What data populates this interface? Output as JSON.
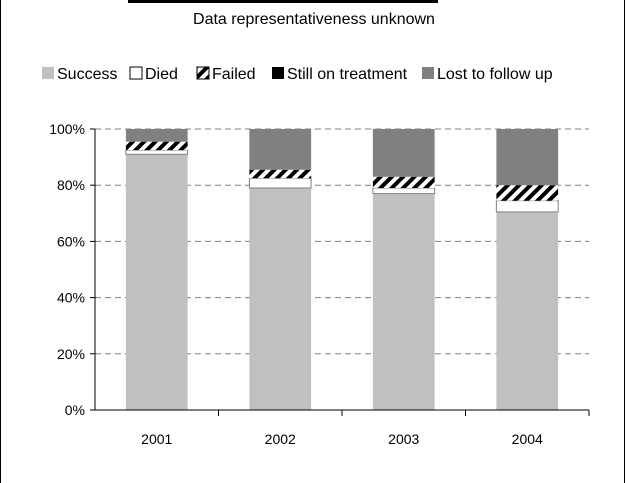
{
  "chart_data": {
    "type": "bar",
    "stacked": true,
    "percent_scale": true,
    "title": "Data representativeness unknown",
    "xlabel": "",
    "ylabel": "",
    "ylim": [
      0,
      100
    ],
    "y_ticks": [
      "0%",
      "20%",
      "40%",
      "60%",
      "80%",
      "100%"
    ],
    "grid": "horizontal dashed",
    "legend_position": "top",
    "categories": [
      "2001",
      "2002",
      "2003",
      "2004"
    ],
    "series": [
      {
        "name": "Success",
        "color": "#c0c0c0",
        "pattern": "solid",
        "values": [
          91,
          79,
          77,
          70.5
        ]
      },
      {
        "name": "Died",
        "color": "#ffffff",
        "pattern": "solid",
        "values": [
          1.5,
          3.5,
          2,
          4
        ]
      },
      {
        "name": "Failed",
        "color": "#000000",
        "pattern": "diagonal-stripes",
        "values": [
          3,
          3,
          4,
          5.5
        ]
      },
      {
        "name": "Still on treatment",
        "color": "#000000",
        "pattern": "solid",
        "values": [
          0,
          0,
          0,
          0
        ]
      },
      {
        "name": "Lost to follow up",
        "color": "#808080",
        "pattern": "solid",
        "values": [
          4.5,
          14.5,
          17,
          20
        ]
      }
    ]
  }
}
